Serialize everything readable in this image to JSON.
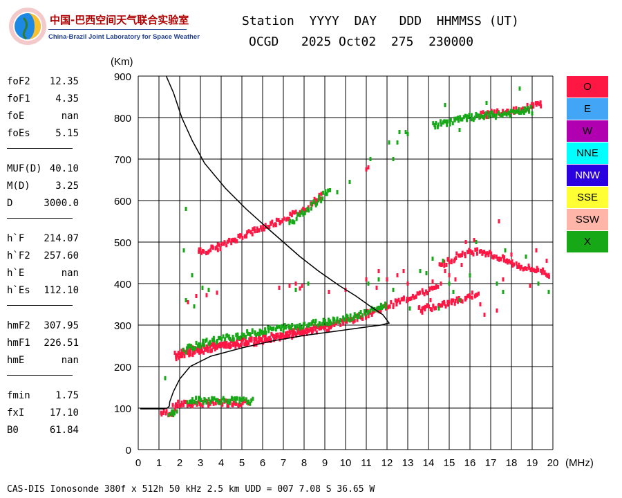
{
  "logo": {
    "cn": "中国-巴西空间天气联合实验室",
    "en": "China-Brazil Joint Laboratory for Space Weather"
  },
  "header": {
    "line1": "Station  YYYY  DAY   DDD  HHMMSS (UT)",
    "line2": "OCGD   2025 Oct02  275  230000"
  },
  "params": [
    {
      "name": "foF2",
      "value": "12.35"
    },
    {
      "name": "foF1",
      "value": "4.35"
    },
    {
      "name": "foE",
      "value": "nan"
    },
    {
      "name": "foEs",
      "value": "5.15"
    },
    {
      "sep": true
    },
    {
      "name": "MUF(D)",
      "value": "40.10"
    },
    {
      "name": "M(D)",
      "value": "3.25"
    },
    {
      "name": "D",
      "value": "3000.0"
    },
    {
      "sep": true
    },
    {
      "name": "h`F",
      "value": "214.07"
    },
    {
      "name": "h`F2",
      "value": "257.60"
    },
    {
      "name": "h`E",
      "value": "nan"
    },
    {
      "name": "h`Es",
      "value": "112.10"
    },
    {
      "sep": true
    },
    {
      "name": "hmF2",
      "value": "307.95"
    },
    {
      "name": "hmF1",
      "value": "226.51"
    },
    {
      "name": "hmE",
      "value": "nan"
    },
    {
      "sep": true
    },
    {
      "name": "fmin",
      "value": "1.75"
    },
    {
      "name": "fxI",
      "value": "17.10"
    },
    {
      "name": "B0",
      "value": "61.84"
    }
  ],
  "legend": [
    {
      "label": "O",
      "color": "#ff1744",
      "text": "#000000"
    },
    {
      "label": "E",
      "color": "#42a5f5",
      "text": "#000000"
    },
    {
      "label": "W",
      "color": "#b000b0",
      "text": "#000000"
    },
    {
      "label": "NNE",
      "color": "#00ffff",
      "text": "#000000"
    },
    {
      "label": "NNW",
      "color": "#2a00e0",
      "text": "#ffffff"
    },
    {
      "label": "SSE",
      "color": "#ffff33",
      "text": "#000000"
    },
    {
      "label": "SSW",
      "color": "#ffb6a8",
      "text": "#000000"
    },
    {
      "label": "X",
      "color": "#17a817",
      "text": "#000000"
    }
  ],
  "footer": "CAS-DIS Ionosonde 380f x 512h 50 kHz 2.5 km UDD = 007 7.08 S 36.65 W",
  "chart_data": {
    "type": "scatter",
    "ylabel": "(Km)",
    "xlabel": "(MHz)",
    "xlim": [
      0,
      20
    ],
    "ylim": [
      0,
      900
    ],
    "xticks": [
      0,
      1,
      2,
      3,
      4,
      5,
      6,
      7,
      8,
      9,
      10,
      11,
      12,
      13,
      14,
      15,
      16,
      17,
      18,
      19,
      20
    ],
    "yticks": [
      0,
      100,
      200,
      300,
      400,
      500,
      600,
      700,
      800,
      900
    ],
    "grid": true,
    "series": [
      {
        "name": "O",
        "color": "#ff1744",
        "segments": [
          [
            [
              1.1,
              88
            ],
            [
              1.5,
              89
            ],
            [
              1.8,
              90
            ]
          ],
          [
            [
              1.7,
              108
            ],
            [
              2.5,
              110
            ],
            [
              3.5,
              112
            ],
            [
              4.5,
              113
            ],
            [
              5.4,
              113
            ]
          ],
          [
            [
              1.8,
              228
            ],
            [
              2.5,
              238
            ],
            [
              3.5,
              250
            ],
            [
              4.5,
              258
            ],
            [
              5.5,
              265
            ],
            [
              6.5,
              272
            ],
            [
              7.5,
              282
            ],
            [
              8.5,
              293
            ],
            [
              9.5,
              303
            ],
            [
              10.5,
              315
            ],
            [
              11.5,
              335
            ],
            [
              12.5,
              355
            ],
            [
              13.5,
              375
            ],
            [
              14.5,
              390
            ]
          ],
          [
            [
              1.8,
              225
            ],
            [
              2.5,
              234
            ],
            [
              3.5,
              244
            ],
            [
              4.5,
              252
            ],
            [
              5.5,
              258
            ],
            [
              6.5,
              268
            ],
            [
              7.5,
              278
            ],
            [
              8.5,
              288
            ],
            [
              9.3,
              295
            ]
          ],
          [
            [
              2.9,
              475
            ],
            [
              4,
              490
            ],
            [
              5,
              515
            ],
            [
              6,
              535
            ],
            [
              7,
              555
            ],
            [
              8,
              578
            ],
            [
              8.9,
              615
            ]
          ],
          [
            [
              13.5,
              340
            ],
            [
              14.5,
              345
            ],
            [
              15.5,
              360
            ],
            [
              16.5,
              380
            ]
          ],
          [
            [
              14.5,
              440
            ],
            [
              15.5,
              470
            ],
            [
              16.5,
              480
            ],
            [
              17.5,
              460
            ],
            [
              18.5,
              440
            ],
            [
              19.5,
              430
            ],
            [
              19.9,
              420
            ]
          ],
          [
            [
              16.5,
              805
            ],
            [
              17.5,
              815
            ],
            [
              18.5,
              820
            ],
            [
              19.5,
              835
            ]
          ]
        ],
        "points": [
          [
            2.4,
            355
          ],
          [
            2.8,
            370
          ],
          [
            3.3,
            372
          ],
          [
            3.8,
            378
          ],
          [
            6.8,
            390
          ],
          [
            7.3,
            395
          ],
          [
            7.6,
            400
          ],
          [
            7.8,
            388
          ],
          [
            7.9,
            395
          ],
          [
            9.2,
            380
          ],
          [
            10,
            385
          ],
          [
            11,
            410
          ],
          [
            11.6,
            430
          ],
          [
            12.5,
            420
          ],
          [
            12.8,
            430
          ],
          [
            14.2,
            405
          ],
          [
            14.6,
            400
          ],
          [
            15,
            420
          ],
          [
            15.3,
            410
          ],
          [
            16.5,
            350
          ],
          [
            17.3,
            335
          ],
          [
            17.6,
            410
          ],
          [
            18.3,
            440
          ],
          [
            18.9,
            395
          ],
          [
            11,
            675
          ],
          [
            11.1,
            680
          ],
          [
            17.4,
            550
          ],
          [
            12,
            410
          ],
          [
            11.5,
            390
          ],
          [
            13,
            400
          ],
          [
            15.8,
            500
          ],
          [
            16.2,
            505
          ],
          [
            14.1,
            360
          ],
          [
            13.7,
            330
          ],
          [
            14.8,
            430
          ],
          [
            15.6,
            445
          ],
          [
            16.9,
            470
          ],
          [
            18,
            470
          ],
          [
            19.2,
            480
          ],
          [
            19.7,
            455
          ],
          [
            16.7,
            325
          ]
        ]
      },
      {
        "name": "X",
        "color": "#17a817",
        "segments": [
          [
            [
              1.5,
              88
            ],
            [
              1.9,
              88
            ]
          ],
          [
            [
              2.4,
              117
            ],
            [
              3.5,
              120
            ],
            [
              4.5,
              118
            ],
            [
              5.6,
              116
            ]
          ],
          [
            [
              2.2,
              240
            ],
            [
              3.5,
              262
            ],
            [
              5,
              276
            ],
            [
              6.5,
              290
            ],
            [
              8,
              300
            ],
            [
              9.2,
              310
            ],
            [
              10.2,
              318
            ],
            [
              11,
              330
            ],
            [
              12,
              350
            ]
          ],
          [
            [
              7.3,
              545
            ],
            [
              8.2,
              580
            ],
            [
              8.9,
              610
            ],
            [
              9.3,
              630
            ]
          ],
          [
            [
              14.2,
              780
            ],
            [
              15,
              790
            ],
            [
              16,
              800
            ],
            [
              17,
              805
            ],
            [
              18,
              810
            ],
            [
              19,
              820
            ]
          ]
        ],
        "points": [
          [
            2.3,
            580
          ],
          [
            1.3,
            172
          ],
          [
            2.2,
            480
          ],
          [
            2.3,
            360
          ],
          [
            2.7,
            345
          ],
          [
            3.1,
            390
          ],
          [
            3.4,
            385
          ],
          [
            12.6,
            765
          ],
          [
            12.9,
            765
          ],
          [
            13,
            760
          ],
          [
            12.5,
            740
          ],
          [
            11.2,
            700
          ],
          [
            10.2,
            645
          ],
          [
            9.6,
            620
          ],
          [
            11.1,
            400
          ],
          [
            11.6,
            410
          ],
          [
            12.3,
            385
          ],
          [
            13.6,
            430
          ],
          [
            14.2,
            460
          ],
          [
            14.7,
            455
          ],
          [
            15.2,
            380
          ],
          [
            15.5,
            360
          ],
          [
            16,
            420
          ],
          [
            17.3,
            400
          ],
          [
            17.6,
            380
          ],
          [
            18.7,
            465
          ],
          [
            19.3,
            400
          ],
          [
            19.8,
            380
          ],
          [
            16.3,
            500
          ],
          [
            14.5,
            340
          ],
          [
            18.4,
            870
          ],
          [
            13.1,
            340
          ],
          [
            14.8,
            830
          ],
          [
            15.5,
            770
          ],
          [
            16.8,
            835
          ],
          [
            19,
            810
          ],
          [
            12.3,
            700
          ],
          [
            12.1,
            740
          ],
          [
            13.9,
            425
          ],
          [
            15,
            400
          ],
          [
            17.7,
            480
          ],
          [
            2.6,
            420
          ],
          [
            8.2,
            400
          ],
          [
            7.6,
            385
          ]
        ]
      }
    ],
    "curve": {
      "name": "",
      "color": "#000000",
      "points": [
        [
          0.1,
          98
        ],
        [
          0.5,
          98
        ],
        [
          1.2,
          98
        ],
        [
          1.4,
          100
        ],
        [
          1.5,
          105
        ],
        [
          1.52,
          115
        ],
        [
          1.7,
          140
        ],
        [
          2,
          170
        ],
        [
          2.5,
          200
        ],
        [
          3.5,
          225
        ],
        [
          5,
          245
        ],
        [
          6.5,
          262
        ],
        [
          8,
          275
        ],
        [
          9.5,
          285
        ],
        [
          10.8,
          294
        ],
        [
          11.7,
          300
        ],
        [
          12.1,
          305
        ],
        [
          11.8,
          325
        ],
        [
          11.2,
          345
        ],
        [
          10.5,
          370
        ],
        [
          9.7,
          395
        ],
        [
          8.7,
          430
        ],
        [
          7.8,
          465
        ],
        [
          7,
          500
        ],
        [
          6.2,
          535
        ],
        [
          5.2,
          580
        ],
        [
          4.2,
          630
        ],
        [
          3.2,
          690
        ],
        [
          2.6,
          745
        ],
        [
          2.1,
          800
        ],
        [
          1.7,
          860
        ],
        [
          1.35,
          900
        ]
      ]
    }
  }
}
